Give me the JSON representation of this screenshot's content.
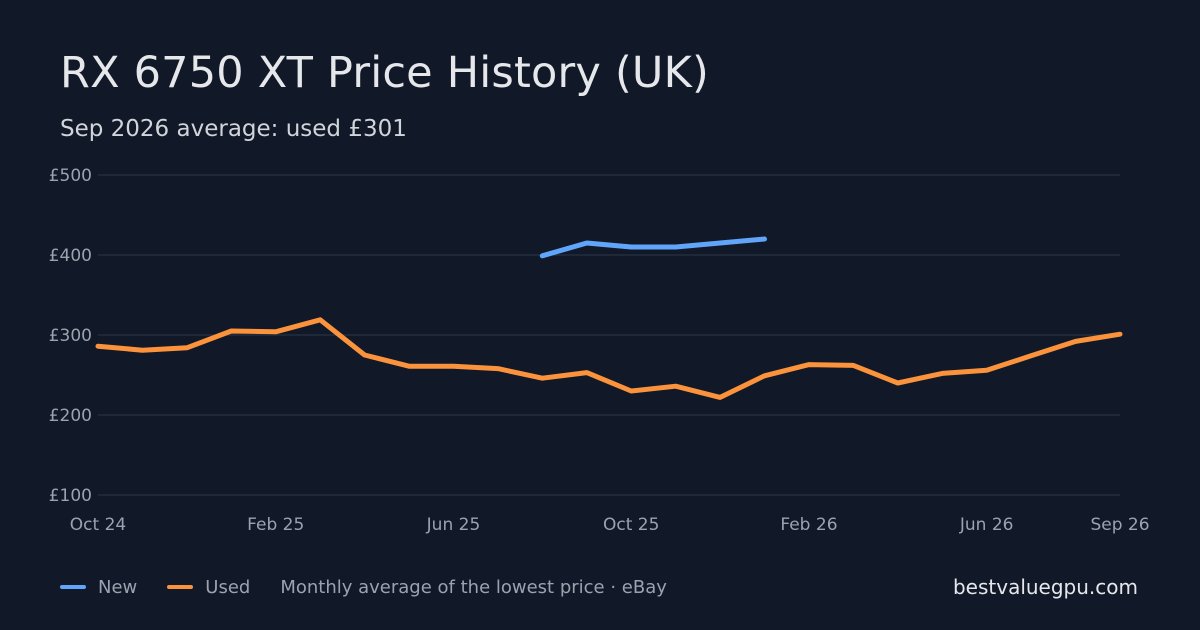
{
  "title": "RX 6750 XT Price History (UK)",
  "subtitle": "Sep 2026 average: used £301",
  "brand": "bestvaluegpu.com",
  "legend": {
    "new_label": "New",
    "used_label": "Used",
    "note": "Monthly average of the lowest price · eBay"
  },
  "colors": {
    "background": "#111827",
    "grid": "#273142",
    "new": "#60a5fa",
    "used": "#fb923c"
  },
  "chart_data": {
    "type": "line",
    "title": "RX 6750 XT Price History (UK)",
    "x": [
      "Oct 24",
      "Nov 24",
      "Dec 24",
      "Jan 25",
      "Feb 25",
      "Mar 25",
      "Apr 25",
      "May 25",
      "Jun 25",
      "Jul 25",
      "Aug 25",
      "Sep 25",
      "Oct 25",
      "Nov 25",
      "Dec 25",
      "Jan 26",
      "Feb 26",
      "Mar 26",
      "Apr 26",
      "May 26",
      "Jun 26",
      "Jul 26",
      "Aug 26",
      "Sep 26"
    ],
    "x_tick_labels": [
      "Oct 24",
      "Feb 25",
      "Jun 25",
      "Oct 25",
      "Feb 26",
      "Jun 26",
      "Sep 26"
    ],
    "y_tick_labels": [
      "£100",
      "£200",
      "£300",
      "£400",
      "£500"
    ],
    "y_ticks": [
      100,
      200,
      300,
      400,
      500
    ],
    "ylim": [
      100,
      500
    ],
    "grid": true,
    "legend_position": "bottom-left",
    "series": [
      {
        "name": "New",
        "color": "#60a5fa",
        "values": [
          null,
          null,
          null,
          null,
          null,
          null,
          null,
          null,
          null,
          null,
          399,
          415,
          410,
          410,
          415,
          420,
          null,
          null,
          null,
          null,
          null,
          null,
          null,
          null
        ]
      },
      {
        "name": "Used",
        "color": "#fb923c",
        "values": [
          286,
          281,
          284,
          305,
          304,
          319,
          275,
          261,
          261,
          258,
          246,
          253,
          230,
          236,
          222,
          249,
          263,
          262,
          240,
          252,
          256,
          274,
          292,
          301
        ]
      }
    ]
  }
}
